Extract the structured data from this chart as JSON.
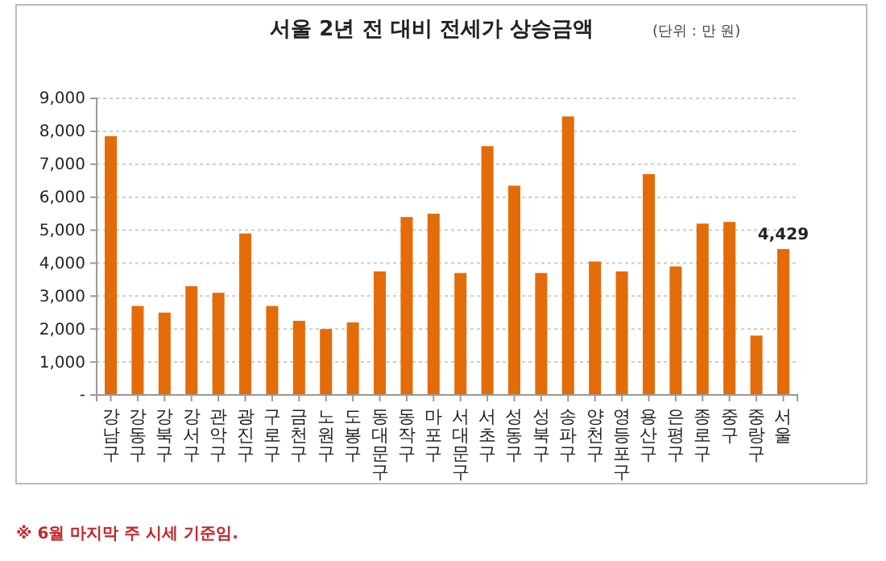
{
  "chart_data": {
    "type": "bar",
    "title": "서울 2년 전 대비 전세가 상승금액",
    "categories": [
      "강남구",
      "강동구",
      "강북구",
      "강서구",
      "관악구",
      "광진구",
      "구로구",
      "금천구",
      "노원구",
      "도봉구",
      "동대문구",
      "동작구",
      "마포구",
      "서대문구",
      "서초구",
      "성동구",
      "성북구",
      "송파구",
      "양천구",
      "영등포구",
      "용산구",
      "은평구",
      "종로구",
      "중구",
      "중랑구",
      "서울"
    ],
    "values": [
      7850,
      2700,
      2500,
      3300,
      3100,
      4900,
      2700,
      2250,
      2000,
      2200,
      3750,
      5400,
      5500,
      3700,
      7550,
      6350,
      3700,
      8450,
      4050,
      3750,
      6700,
      3900,
      5200,
      5250,
      1800,
      4429
    ],
    "value_labels": [
      null,
      null,
      null,
      null,
      null,
      null,
      null,
      null,
      null,
      null,
      null,
      null,
      null,
      null,
      null,
      null,
      null,
      null,
      null,
      null,
      null,
      null,
      null,
      null,
      null,
      "4,429"
    ],
    "color": "#e36c09",
    "ylim": [
      0,
      9000
    ],
    "yticks": [
      {
        "value": 0,
        "label": "-"
      },
      {
        "value": 1000,
        "label": "1,000"
      },
      {
        "value": 2000,
        "label": "2,000"
      },
      {
        "value": 3000,
        "label": "3,000"
      },
      {
        "value": 4000,
        "label": "4,000"
      },
      {
        "value": 5000,
        "label": "5,000"
      },
      {
        "value": 6000,
        "label": "6,000"
      },
      {
        "value": 7000,
        "label": "7,000"
      },
      {
        "value": 8000,
        "label": "8,000"
      },
      {
        "value": 9000,
        "label": "9,000"
      }
    ],
    "grid": "y",
    "annotations": [
      "(단위 : 만 원)",
      "※ 6월 마지막 주 시세 기준임."
    ]
  }
}
